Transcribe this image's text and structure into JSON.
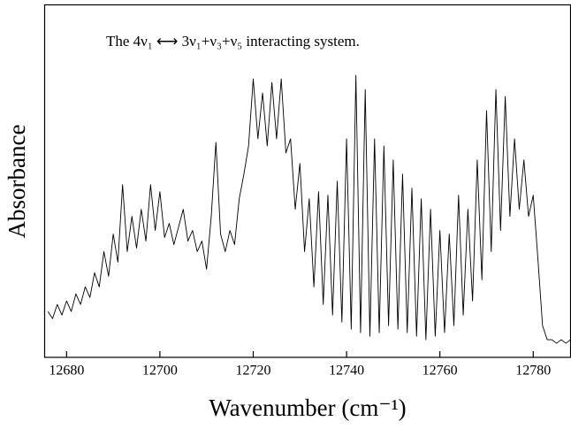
{
  "chart_data": {
    "type": "line",
    "annotation": "The 4ν₁ ⟷ 3ν₁+ν₃+ν₅ interacting system.",
    "xlabel": "Wavenumber (cm⁻¹)",
    "ylabel": "Absorbance",
    "color": "#000000",
    "grid": false,
    "xlim": [
      12675.3,
      12788
    ],
    "ylim": [
      0,
      1
    ],
    "xticks": [
      12680,
      12700,
      12720,
      12740,
      12760,
      12780
    ],
    "x": [
      12676,
      12677,
      12678,
      12679,
      12680,
      12681,
      12682,
      12683,
      12684,
      12685,
      12686,
      12687,
      12688,
      12689,
      12690,
      12691,
      12692,
      12693,
      12694,
      12695,
      12696,
      12697,
      12698,
      12699,
      12700,
      12701,
      12702,
      12703,
      12704,
      12705,
      12706,
      12707,
      12708,
      12709,
      12710,
      12711,
      12712,
      12713,
      12714,
      12715,
      12716,
      12717,
      12718,
      12719,
      12720,
      12721,
      12722,
      12723,
      12724,
      12725,
      12726,
      12727,
      12728,
      12729,
      12730,
      12731,
      12732,
      12733,
      12734,
      12735,
      12736,
      12737,
      12738,
      12739,
      12740,
      12741,
      12742,
      12743,
      12744,
      12745,
      12746,
      12747,
      12748,
      12749,
      12750,
      12751,
      12752,
      12753,
      12754,
      12755,
      12756,
      12757,
      12758,
      12759,
      12760,
      12761,
      12762,
      12763,
      12764,
      12765,
      12766,
      12767,
      12768,
      12769,
      12770,
      12771,
      12772,
      12773,
      12774,
      12775,
      12776,
      12777,
      12778,
      12779,
      12780,
      12781,
      12782,
      12783,
      12784,
      12785,
      12786,
      12787,
      12788
    ],
    "values": [
      0.13,
      0.11,
      0.15,
      0.12,
      0.16,
      0.13,
      0.18,
      0.15,
      0.2,
      0.17,
      0.24,
      0.2,
      0.3,
      0.23,
      0.35,
      0.27,
      0.49,
      0.3,
      0.4,
      0.31,
      0.42,
      0.33,
      0.49,
      0.36,
      0.47,
      0.34,
      0.38,
      0.32,
      0.37,
      0.42,
      0.33,
      0.36,
      0.3,
      0.33,
      0.25,
      0.4,
      0.61,
      0.35,
      0.3,
      0.36,
      0.32,
      0.45,
      0.52,
      0.6,
      0.79,
      0.62,
      0.75,
      0.6,
      0.78,
      0.62,
      0.79,
      0.58,
      0.62,
      0.42,
      0.55,
      0.3,
      0.45,
      0.2,
      0.47,
      0.15,
      0.46,
      0.12,
      0.5,
      0.1,
      0.62,
      0.08,
      0.8,
      0.07,
      0.76,
      0.06,
      0.62,
      0.07,
      0.6,
      0.09,
      0.56,
      0.08,
      0.52,
      0.07,
      0.48,
      0.06,
      0.45,
      0.05,
      0.42,
      0.06,
      0.36,
      0.07,
      0.35,
      0.09,
      0.46,
      0.12,
      0.42,
      0.16,
      0.56,
      0.22,
      0.7,
      0.3,
      0.76,
      0.36,
      0.74,
      0.4,
      0.62,
      0.42,
      0.56,
      0.4,
      0.46,
      0.28,
      0.09,
      0.05,
      0.05,
      0.04,
      0.05,
      0.04,
      0.05
    ]
  }
}
